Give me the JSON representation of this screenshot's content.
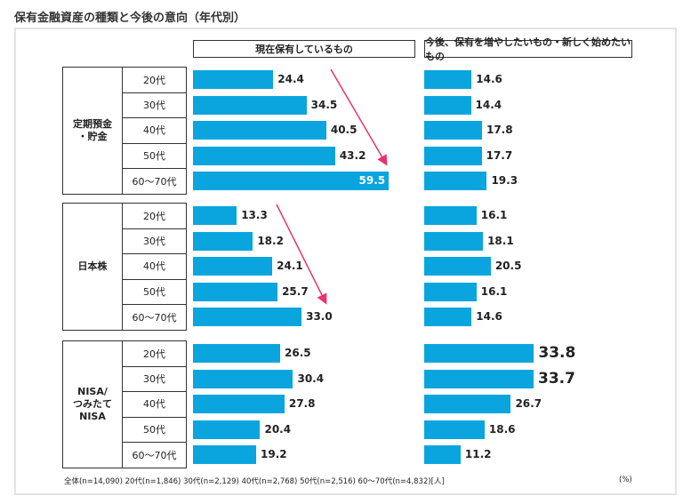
{
  "chart_data": {
    "type": "bar",
    "orientation": "horizontal",
    "title": "保有金融資産の種類と今後の意向（年代別）",
    "panels": [
      {
        "title": "現在保有しているもの"
      },
      {
        "title": "今後、保有を増やしたいもの・新しく始めたいもの"
      }
    ],
    "categories": [
      "20代",
      "30代",
      "40代",
      "50代",
      "60〜70代"
    ],
    "groups": [
      {
        "name": "定期預金\n・貯金",
        "current": [
          24.4,
          34.5,
          40.5,
          43.2,
          59.5
        ],
        "future": [
          14.6,
          14.4,
          17.8,
          17.7,
          19.3
        ]
      },
      {
        "name": "日本株",
        "current": [
          13.3,
          18.2,
          24.1,
          25.7,
          33.0
        ],
        "future": [
          16.1,
          18.1,
          20.5,
          16.1,
          14.6
        ]
      },
      {
        "name": "NISA/\nつみたて\nNISA",
        "current": [
          26.5,
          30.4,
          27.8,
          20.4,
          19.2
        ],
        "future": [
          33.8,
          33.7,
          26.7,
          18.6,
          11.2
        ]
      }
    ],
    "value_labels": {
      "current": [
        [
          "24.4",
          "34.5",
          "40.5",
          "43.2",
          "59.5"
        ],
        [
          "13.3",
          "18.2",
          "24.1",
          "25.7",
          "33.0"
        ],
        [
          "26.5",
          "30.4",
          "27.8",
          "20.4",
          "19.2"
        ]
      ],
      "future": [
        [
          "14.6",
          "14.4",
          "17.8",
          "17.7",
          "19.3"
        ],
        [
          "16.1",
          "18.1",
          "20.5",
          "16.1",
          "14.6"
        ],
        [
          "33.8",
          "33.7",
          "26.7",
          "18.6",
          "11.2"
        ]
      ]
    },
    "highlighted_values": [
      "33.8",
      "33.7"
    ],
    "annotations": [
      "arrow increasing trend: 定期預金・貯金 現在保有",
      "arrow increasing trend: 日本株 現在保有"
    ],
    "footnote": "全体(n=14,090)  20代(n=1,846)  30代(n=2,129)  40代(n=2,768)  50代(n=2,516)  60〜70代(n=4,832)[人]",
    "unit": "(%)",
    "colors": {
      "bar": "#0aa5de",
      "arrow": "#e8336d"
    }
  }
}
